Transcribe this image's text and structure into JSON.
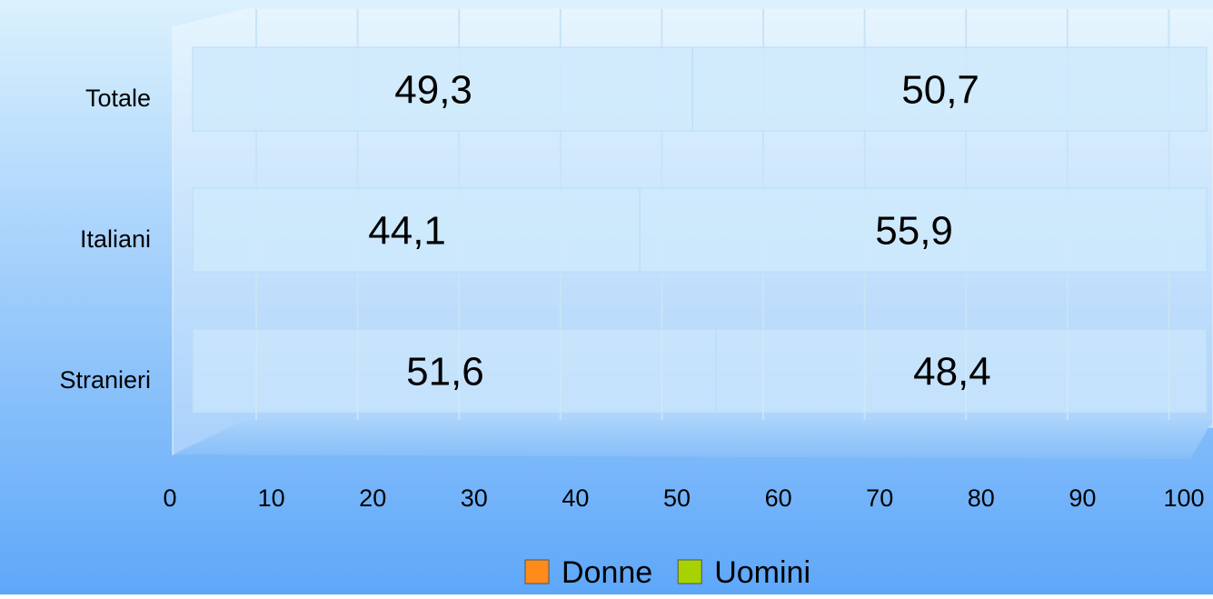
{
  "chart_data": {
    "type": "bar",
    "orientation": "horizontal",
    "stacked": true,
    "categories": [
      "Totale",
      "Italiani",
      "Stranieri"
    ],
    "series": [
      {
        "name": "Donne",
        "color": "#ff8c1a",
        "values": [
          49.3,
          44.1,
          51.6
        ],
        "value_labels": [
          "49,3",
          "44,1",
          "51,6"
        ]
      },
      {
        "name": "Uomini",
        "color": "#a6d300",
        "values": [
          50.7,
          55.9,
          48.4
        ],
        "value_labels": [
          "50,7",
          "55,9",
          "48,4"
        ]
      }
    ],
    "bar_color": "#cfeafc",
    "xlim": [
      0,
      100
    ],
    "xticks": [
      0,
      10,
      20,
      30,
      40,
      50,
      60,
      70,
      80,
      90,
      100
    ],
    "grid": true,
    "legend": "bottom"
  }
}
